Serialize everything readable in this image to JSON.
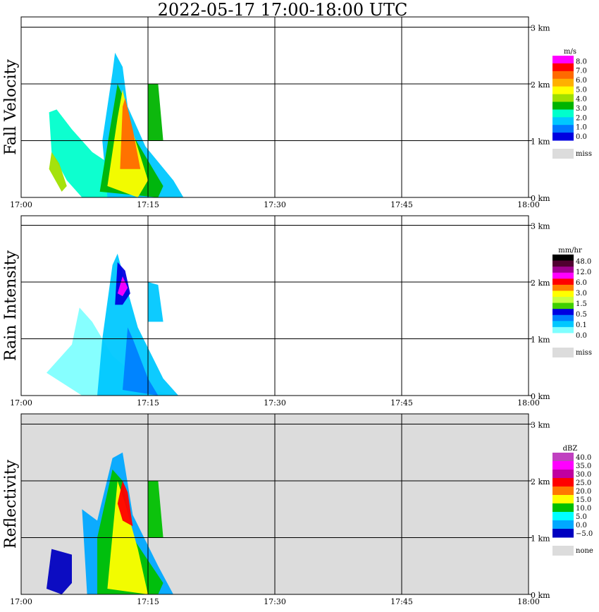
{
  "title": "2022-05-17   17:00-18:00 UTC",
  "time_ticks": [
    "17:00",
    "17:15",
    "17:30",
    "17:45",
    "18:00"
  ],
  "height_ticks": [
    "0 km",
    "1 km",
    "2 km",
    "3 km"
  ],
  "colors": {
    "bar_fill": "#ffffff",
    "panel_bg_default": "#ffffff",
    "panel_bg_reflectivity": "#dcdcdc",
    "miss": "#dcdcdc"
  },
  "chart_data": [
    {
      "type": "heatmap",
      "ylabel": "Fall Velocity",
      "x_range": [
        "17:00",
        "18:00"
      ],
      "y_range_km": [
        0,
        3.2
      ],
      "legend": {
        "unit": "m/s",
        "labels": [
          "8.0",
          "7.0",
          "6.0",
          "5.0",
          "4.0",
          "3.0",
          "2.0",
          "1.0",
          "0.0"
        ],
        "colors": [
          "#ff00ff",
          "#ff0000",
          "#ff6a00",
          "#ffb000",
          "#ffff00",
          "#a0e000",
          "#00b400",
          "#00ffcc",
          "#00c8ff",
          "#0078ff",
          "#0000e0"
        ],
        "miss_label": "miss"
      },
      "echo_band": "velocity"
    },
    {
      "type": "heatmap",
      "ylabel": "Rain Intensity",
      "x_range": [
        "17:00",
        "18:00"
      ],
      "y_range_km": [
        0,
        3.2
      ],
      "legend": {
        "unit": "mm/hr",
        "labels": [
          "48.0",
          "12.0",
          "6.0",
          "3.0",
          "1.5",
          "0.5",
          "0.1",
          "0.0"
        ],
        "colors": [
          "#000000",
          "#500030",
          "#a00090",
          "#ff00ff",
          "#ff0000",
          "#ff8000",
          "#ffff00",
          "#c8ff40",
          "#40d000",
          "#0000e0",
          "#0080ff",
          "#00c8ff",
          "#80ffff",
          "#ffffff"
        ],
        "miss_label": "miss"
      },
      "echo_band": "rain"
    },
    {
      "type": "heatmap",
      "ylabel": "Reflectivity",
      "x_range": [
        "17:00",
        "18:00"
      ],
      "y_range_km": [
        0,
        3.2
      ],
      "legend": {
        "unit": "dBZ",
        "labels": [
          "40.0",
          "35.0",
          "30.0",
          "25.0",
          "20.0",
          "15.0",
          "10.0",
          "5.0",
          "0.0",
          "−5.0"
        ],
        "colors": [
          "#c040c0",
          "#ff00ff",
          "#c000a0",
          "#ff0000",
          "#ff7800",
          "#ffff00",
          "#00c000",
          "#00ffff",
          "#00a8ff",
          "#0000c0"
        ],
        "miss_label": "none"
      },
      "echo_band": "reflectivity"
    }
  ]
}
